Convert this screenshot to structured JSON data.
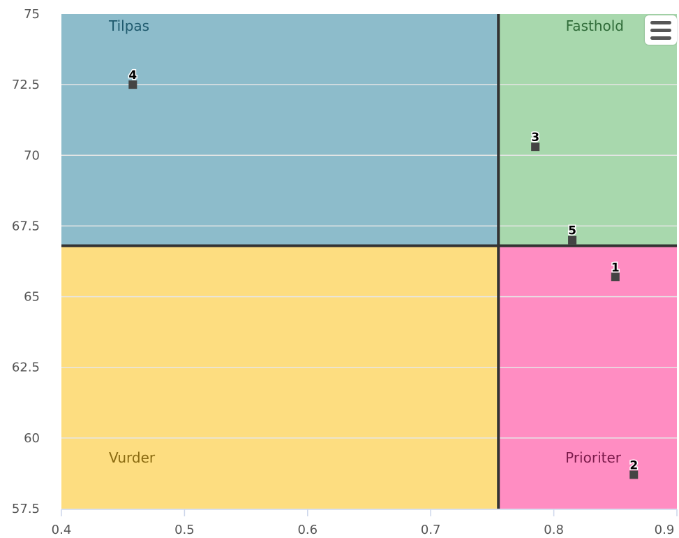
{
  "chart_data": {
    "type": "scatter",
    "xlim": [
      0.4,
      0.9
    ],
    "ylim": [
      57.5,
      75
    ],
    "x_ticks": [
      0.4,
      0.5,
      0.6,
      0.7,
      0.8,
      0.9
    ],
    "x_tick_labels": [
      "0.4",
      "0.5",
      "0.6",
      "0.7",
      "0.8",
      "0.9"
    ],
    "y_ticks": [
      57.5,
      60,
      62.5,
      65,
      67.5,
      70,
      72.5,
      75
    ],
    "y_tick_labels": [
      "57.5",
      "60",
      "62.5",
      "65",
      "67.5",
      "70",
      "72.5",
      "75"
    ],
    "grid": "horizontal",
    "divider_x": 0.755,
    "divider_y": 66.8,
    "quadrants": [
      {
        "name": "Tilpas",
        "position": "top-left",
        "color": "#8dbccb",
        "label_color": "#1f5a6e"
      },
      {
        "name": "Fasthold",
        "position": "top-right",
        "color": "#a8d8ad",
        "label_color": "#2f6b38"
      },
      {
        "name": "Vurder",
        "position": "bottom-left",
        "color": "#fddd80",
        "label_color": "#8a6a10"
      },
      {
        "name": "Prioriter",
        "position": "bottom-right",
        "color": "#ff8dc2",
        "label_color": "#7a1a4a"
      }
    ],
    "points": [
      {
        "label": "1",
        "x": 0.85,
        "y": 65.7
      },
      {
        "label": "2",
        "x": 0.865,
        "y": 58.7
      },
      {
        "label": "3",
        "x": 0.785,
        "y": 70.3
      },
      {
        "label": "4",
        "x": 0.458,
        "y": 72.5
      },
      {
        "label": "5",
        "x": 0.815,
        "y": 67.0
      }
    ],
    "marker_color": "#444444",
    "divider_color": "#333333"
  },
  "menu": {
    "icon": "hamburger-icon"
  }
}
